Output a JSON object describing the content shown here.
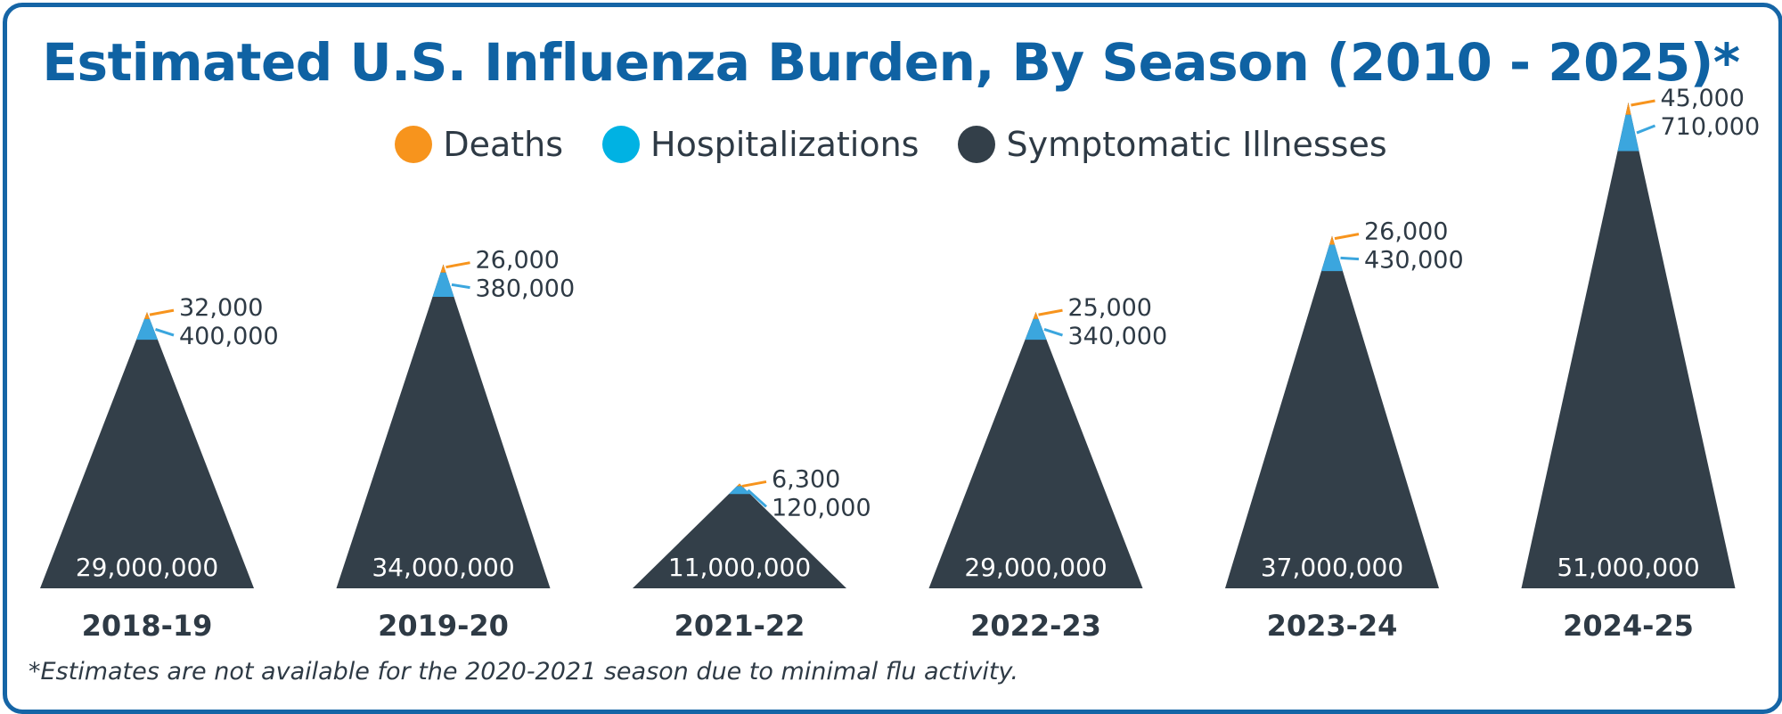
{
  "title": "Estimated U.S. Influenza Burden, By Season (2010 - 2025)*",
  "footnote": "*Estimates are not available for the 2020-2021 season due to minimal flu activity.",
  "legend": [
    {
      "label": "Deaths",
      "color": "#f7941d"
    },
    {
      "label": "Hospitalizations",
      "color": "#00b2e3"
    },
    {
      "label": "Symptomatic Illnesses",
      "color": "#333f49"
    }
  ],
  "colors": {
    "deaths": "#f7941d",
    "hospitalizations": "#3ba6de",
    "illnesses": "#333f49",
    "title": "#0f62a3",
    "border": "#1565a6"
  },
  "chart_data": {
    "type": "area",
    "categories": [
      "2018-19",
      "2019-20",
      "2021-22",
      "2022-23",
      "2023-24",
      "2024-25"
    ],
    "series": [
      {
        "name": "Symptomatic Illnesses",
        "values": [
          29000000,
          34000000,
          11000000,
          29000000,
          37000000,
          51000000
        ],
        "labels": [
          "29,000,000",
          "34,000,000",
          "11,000,000",
          "29,000,000",
          "37,000,000",
          "51,000,000"
        ]
      },
      {
        "name": "Hospitalizations",
        "values": [
          400000,
          380000,
          120000,
          340000,
          430000,
          710000
        ],
        "labels": [
          "400,000",
          "380,000",
          "120,000",
          "340,000",
          "430,000",
          "710,000"
        ]
      },
      {
        "name": "Deaths",
        "values": [
          32000,
          26000,
          6300,
          25000,
          26000,
          45000
        ],
        "labels": [
          "32,000",
          "26,000",
          "6,300",
          "25,000",
          "26,000",
          "45,000"
        ]
      }
    ]
  }
}
